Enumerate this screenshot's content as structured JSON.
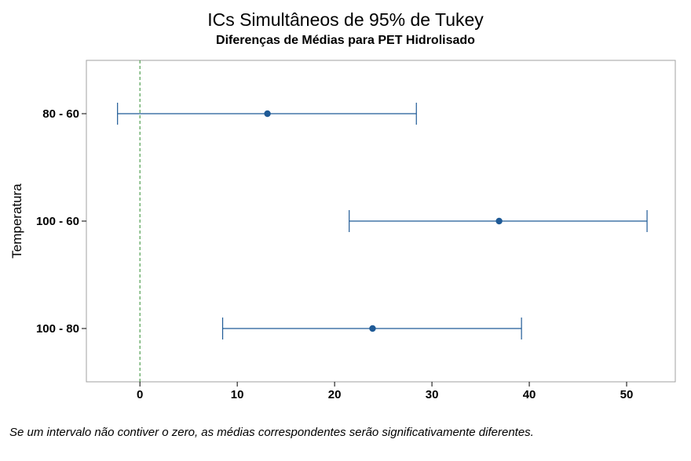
{
  "chart_data": {
    "type": "interval",
    "title": "ICs Simultâneos de 95% de Tukey",
    "subtitle": "Diferenças de Médias para PET Hidrolisado",
    "xlabel": "",
    "ylabel": "Temperatura",
    "xlim": [
      -5.5,
      55
    ],
    "xticks": [
      0,
      10,
      20,
      30,
      40,
      50
    ],
    "reference_line": 0,
    "grid": false,
    "categories": [
      "80 - 60",
      "100 - 60",
      "100 - 80"
    ],
    "estimates": [
      13.1,
      36.9,
      23.9
    ],
    "lower": [
      -2.3,
      21.5,
      8.5
    ],
    "upper": [
      28.4,
      52.1,
      39.2
    ],
    "colors": {
      "interval": "#1f5a96",
      "reference": "#2e8b2e",
      "frame": "#a0a0a0"
    }
  },
  "footnote": "Se um intervalo não contiver o zero, as médias correspondentes serão significativamente diferentes."
}
